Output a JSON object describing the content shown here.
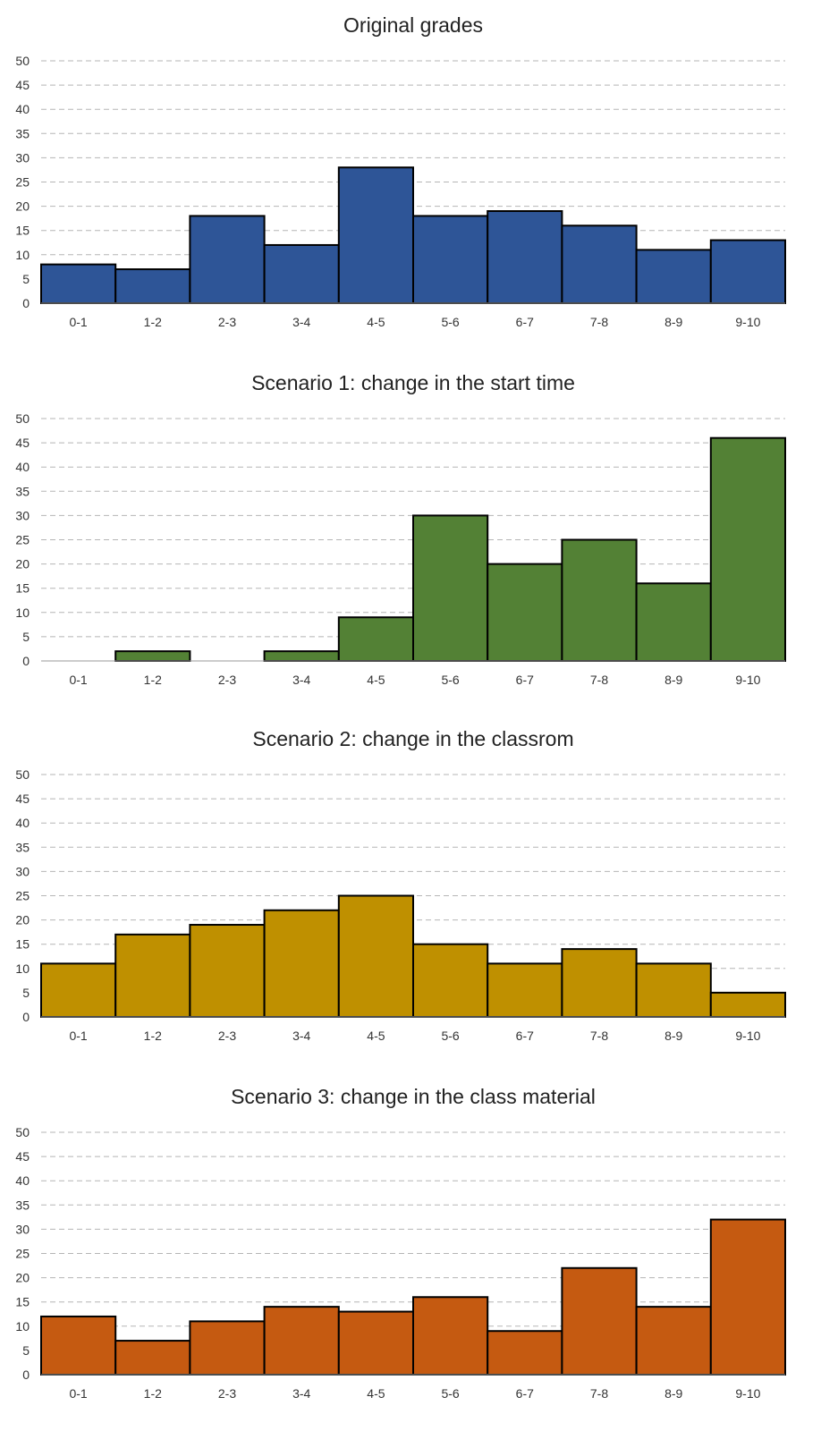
{
  "chart_data": [
    {
      "type": "bar",
      "title": "Original grades",
      "xlabel": "",
      "ylabel": "",
      "categories": [
        "0-1",
        "1-2",
        "2-3",
        "3-4",
        "4-5",
        "5-6",
        "6-7",
        "7-8",
        "8-9",
        "9-10"
      ],
      "values": [
        8,
        7,
        18,
        12,
        28,
        18,
        19,
        16,
        11,
        13
      ],
      "color": "#2e5597",
      "ylim": [
        0,
        50
      ],
      "yticks": [
        0,
        5,
        10,
        15,
        20,
        25,
        30,
        35,
        40,
        45,
        50
      ],
      "grid": true,
      "legend": "none"
    },
    {
      "type": "bar",
      "title": "Scenario 1: change in the start time",
      "xlabel": "",
      "ylabel": "",
      "categories": [
        "0-1",
        "1-2",
        "2-3",
        "3-4",
        "4-5",
        "5-6",
        "6-7",
        "7-8",
        "8-9",
        "9-10"
      ],
      "values": [
        0,
        2,
        0,
        2,
        9,
        30,
        20,
        25,
        16,
        46
      ],
      "color": "#538135",
      "ylim": [
        0,
        50
      ],
      "yticks": [
        0,
        5,
        10,
        15,
        20,
        25,
        30,
        35,
        40,
        45,
        50
      ],
      "grid": true,
      "legend": "none"
    },
    {
      "type": "bar",
      "title": "Scenario 2: change in the classrom",
      "xlabel": "",
      "ylabel": "",
      "categories": [
        "0-1",
        "1-2",
        "2-3",
        "3-4",
        "4-5",
        "5-6",
        "6-7",
        "7-8",
        "8-9",
        "9-10"
      ],
      "values": [
        11,
        17,
        19,
        22,
        25,
        15,
        11,
        14,
        11,
        5
      ],
      "color": "#bf9000",
      "ylim": [
        0,
        50
      ],
      "yticks": [
        0,
        5,
        10,
        15,
        20,
        25,
        30,
        35,
        40,
        45,
        50
      ],
      "grid": true,
      "legend": "none"
    },
    {
      "type": "bar",
      "title": "Scenario 3: change in the class material",
      "xlabel": "",
      "ylabel": "",
      "categories": [
        "0-1",
        "1-2",
        "2-3",
        "3-4",
        "4-5",
        "5-6",
        "6-7",
        "7-8",
        "8-9",
        "9-10"
      ],
      "values": [
        12,
        7,
        11,
        14,
        13,
        16,
        9,
        22,
        14,
        32
      ],
      "color": "#c55a11",
      "ylim": [
        0,
        50
      ],
      "yticks": [
        0,
        5,
        10,
        15,
        20,
        25,
        30,
        35,
        40,
        45,
        50
      ],
      "grid": true,
      "legend": "none"
    }
  ]
}
